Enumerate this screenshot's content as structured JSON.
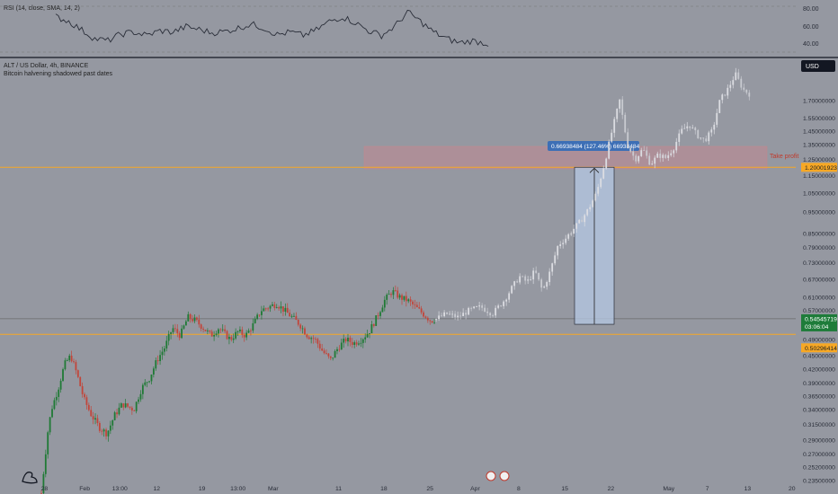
{
  "header": {
    "symbol_line": "ALT / US Dollar, 4h, BINANCE",
    "indicator_line": "Bitcoin halvening shadowed past dates",
    "currency_badge": "USD"
  },
  "rsi": {
    "label": "RSI (14, close, SMA, 14, 2)",
    "ticks": [
      "80.00",
      "60.00",
      "40.00"
    ],
    "tick_values": [
      80,
      60,
      40
    ]
  },
  "price_axis": {
    "labels": [
      "1.70000000",
      "1.55000000",
      "1.45000000",
      "1.35000000",
      "1.25000000",
      "1.15000000",
      "1.05000000",
      "0.95000000",
      "0.85000000",
      "0.79000000",
      "0.73000000",
      "0.67000000",
      "0.61000000",
      "0.57000000",
      "0.49000000",
      "0.45000000",
      "0.42000000",
      "0.39000000",
      "0.36500000",
      "0.34000000",
      "0.31500000",
      "0.29000000",
      "0.27000000",
      "0.25200000",
      "0.23500000"
    ],
    "values": [
      1.7,
      1.55,
      1.45,
      1.35,
      1.25,
      1.15,
      1.05,
      0.95,
      0.85,
      0.79,
      0.73,
      0.67,
      0.61,
      0.57,
      0.49,
      0.45,
      0.42,
      0.39,
      0.365,
      0.34,
      0.315,
      0.29,
      0.27,
      0.252,
      0.235
    ]
  },
  "time_axis": {
    "labels": [
      "28",
      "Feb",
      "13:00",
      "12",
      "19",
      "13:00",
      "Mar",
      "11",
      "18",
      "25",
      "Apr",
      "8",
      "15",
      "22",
      "May",
      "7",
      "13",
      "20"
    ],
    "positions_pct": [
      5.3,
      10.1,
      14.3,
      18.7,
      24.1,
      28.4,
      32.6,
      40.4,
      45.8,
      51.3,
      56.7,
      61.9,
      67.4,
      72.9,
      79.8,
      84.4,
      89.2,
      94.5
    ]
  },
  "markers": {
    "take_profit_label": "Take profit",
    "take_profit_price": "1.20001923",
    "current_price": "0.54545719",
    "countdown": "03:06:04",
    "support_price": "0.50296414"
  },
  "measure": {
    "label": "0.66938484 (127.46%) 66938484"
  },
  "colors": {
    "background": "#9598a1",
    "up": "#1f7a35",
    "down": "#c2453a",
    "projection": "#dcdde2",
    "support_line": "#f7a825",
    "tp_zone": "#d97f86",
    "measure_fill": "#b6c8e4",
    "price_badge": "#1e7c3a",
    "support_badge": "#f7a825"
  },
  "chart_data": {
    "type": "candlestick",
    "title": "ALT / US Dollar, 4h, BINANCE",
    "y_scale": "log",
    "ylim": [
      0.235,
      1.9
    ],
    "key_levels": {
      "take_profit": 1.20001923,
      "current": 0.54545719,
      "support": 0.50296414
    },
    "measure_range": {
      "from": 0.53,
      "to": 1.2,
      "change_pct": 127.46
    },
    "path_real": [
      [
        0.0,
        0.22
      ],
      [
        0.8,
        0.3
      ],
      [
        1.3,
        0.34
      ],
      [
        2.2,
        0.38
      ],
      [
        3.0,
        0.43
      ],
      [
        3.8,
        0.45
      ],
      [
        4.6,
        0.41
      ],
      [
        5.5,
        0.36
      ],
      [
        6.5,
        0.33
      ],
      [
        7.5,
        0.31
      ],
      [
        8.5,
        0.3
      ],
      [
        9.5,
        0.33
      ],
      [
        10.5,
        0.35
      ],
      [
        12.0,
        0.34
      ],
      [
        13.0,
        0.38
      ],
      [
        14.0,
        0.4
      ],
      [
        15.0,
        0.44
      ],
      [
        16.0,
        0.47
      ],
      [
        17.0,
        0.52
      ],
      [
        18.0,
        0.5
      ],
      [
        19.0,
        0.55
      ],
      [
        20.0,
        0.54
      ],
      [
        21.0,
        0.52
      ],
      [
        22.0,
        0.5
      ],
      [
        23.0,
        0.52
      ],
      [
        24.5,
        0.49
      ],
      [
        25.5,
        0.51
      ],
      [
        26.5,
        0.5
      ],
      [
        27.5,
        0.53
      ],
      [
        28.5,
        0.57
      ],
      [
        29.5,
        0.58
      ],
      [
        30.5,
        0.59
      ],
      [
        31.5,
        0.57
      ],
      [
        32.5,
        0.55
      ],
      [
        33.5,
        0.53
      ],
      [
        34.5,
        0.5
      ],
      [
        35.5,
        0.49
      ],
      [
        36.5,
        0.46
      ],
      [
        37.5,
        0.44
      ],
      [
        38.5,
        0.47
      ],
      [
        39.5,
        0.49
      ],
      [
        40.5,
        0.48
      ],
      [
        41.5,
        0.49
      ],
      [
        42.5,
        0.51
      ],
      [
        43.5,
        0.55
      ],
      [
        44.5,
        0.6
      ],
      [
        45.5,
        0.63
      ],
      [
        46.5,
        0.61
      ],
      [
        47.5,
        0.6
      ],
      [
        48.5,
        0.58
      ],
      [
        49.5,
        0.56
      ],
      [
        50.5,
        0.54
      ],
      [
        51.2,
        0.545
      ]
    ],
    "path_projection": [
      [
        51.2,
        0.545
      ],
      [
        52.5,
        0.56
      ],
      [
        54,
        0.55
      ],
      [
        55.5,
        0.57
      ],
      [
        57,
        0.58
      ],
      [
        58.5,
        0.56
      ],
      [
        60,
        0.6
      ],
      [
        61,
        0.64
      ],
      [
        62,
        0.68
      ],
      [
        63,
        0.66
      ],
      [
        64,
        0.7
      ],
      [
        65,
        0.63
      ],
      [
        66,
        0.7
      ],
      [
        67,
        0.8
      ],
      [
        68,
        0.83
      ],
      [
        69,
        0.87
      ],
      [
        70,
        0.91
      ],
      [
        71,
        0.97
      ],
      [
        72,
        1.05
      ],
      [
        73,
        1.22
      ],
      [
        74,
        1.45
      ],
      [
        75,
        1.7
      ],
      [
        76,
        1.35
      ],
      [
        77,
        1.25
      ],
      [
        78,
        1.32
      ],
      [
        79,
        1.22
      ],
      [
        80,
        1.28
      ],
      [
        81,
        1.26
      ],
      [
        82,
        1.33
      ],
      [
        83,
        1.45
      ],
      [
        84,
        1.5
      ],
      [
        85,
        1.42
      ],
      [
        86,
        1.38
      ],
      [
        87,
        1.45
      ],
      [
        88,
        1.7
      ],
      [
        89,
        1.8
      ],
      [
        90,
        1.95
      ],
      [
        91,
        1.8
      ],
      [
        92,
        1.75
      ]
    ],
    "rsi_path": [
      [
        0,
        83
      ],
      [
        3,
        76
      ],
      [
        6,
        63
      ],
      [
        9,
        50
      ],
      [
        12,
        47
      ],
      [
        15,
        57
      ],
      [
        18,
        60
      ],
      [
        21,
        55
      ],
      [
        24,
        62
      ],
      [
        27,
        60
      ],
      [
        30,
        68
      ],
      [
        33,
        64
      ],
      [
        36,
        59
      ],
      [
        39,
        61
      ],
      [
        42,
        66
      ],
      [
        45,
        72
      ],
      [
        48,
        66
      ],
      [
        51,
        56
      ],
      [
        54,
        60
      ],
      [
        57,
        55
      ],
      [
        60,
        63
      ],
      [
        63,
        76
      ],
      [
        66,
        83
      ],
      [
        69,
        74
      ],
      [
        72,
        62
      ],
      [
        75,
        55
      ],
      [
        78,
        68
      ],
      [
        81,
        90
      ],
      [
        84,
        76
      ],
      [
        87,
        60
      ],
      [
        90,
        50
      ],
      [
        93,
        44
      ],
      [
        96,
        47
      ],
      [
        100,
        42
      ]
    ]
  }
}
